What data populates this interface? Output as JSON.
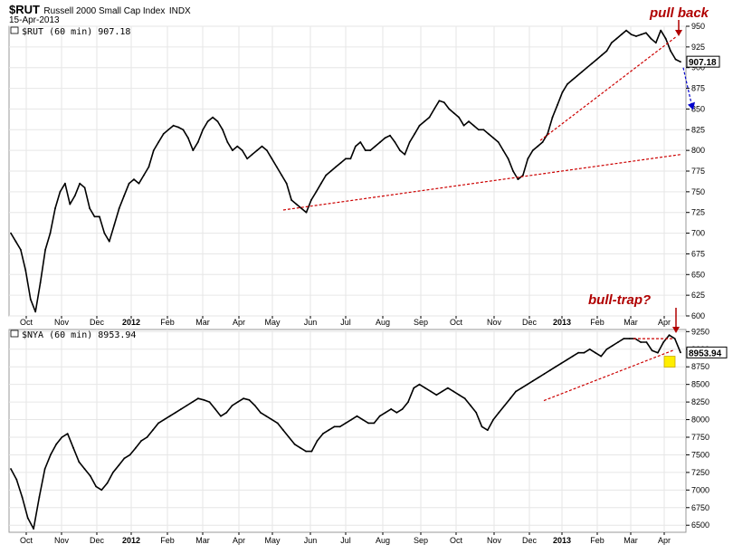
{
  "header": {
    "symbol": "$RUT",
    "name": "Russell 2000 Small Cap Index",
    "exchange": "INDX",
    "date": "15-Apr-2013"
  },
  "colors": {
    "price": "#000000",
    "trendline": "#cc0000",
    "annotation": "#b00000",
    "projection": "#0000cc",
    "highlight": "#ffee00",
    "grid": "#e6e6e6"
  },
  "chart_data": [
    {
      "type": "line",
      "legend": "$RUT (60 min) 907.18",
      "last_value": "907.18",
      "x_ticks": [
        {
          "label": "Oct",
          "bold": false
        },
        {
          "label": "Nov",
          "bold": false
        },
        {
          "label": "Dec",
          "bold": false
        },
        {
          "label": "2012",
          "bold": true
        },
        {
          "label": "Feb",
          "bold": false
        },
        {
          "label": "Mar",
          "bold": false
        },
        {
          "label": "Apr",
          "bold": false
        },
        {
          "label": "May",
          "bold": false
        },
        {
          "label": "Jun",
          "bold": false
        },
        {
          "label": "Jul",
          "bold": false
        },
        {
          "label": "Aug",
          "bold": false
        },
        {
          "label": "Sep",
          "bold": false
        },
        {
          "label": "Oct",
          "bold": false
        },
        {
          "label": "Nov",
          "bold": false
        },
        {
          "label": "Dec",
          "bold": false
        },
        {
          "label": "2013",
          "bold": true
        },
        {
          "label": "Feb",
          "bold": false
        },
        {
          "label": "Mar",
          "bold": false
        },
        {
          "label": "Apr",
          "bold": false
        }
      ],
      "y_ticks": [
        950,
        925,
        900,
        875,
        850,
        825,
        800,
        775,
        750,
        725,
        700,
        675,
        650,
        625,
        600
      ],
      "ylim": [
        600,
        950
      ],
      "series": [
        {
          "values": [
            700,
            690,
            680,
            655,
            620,
            605,
            640,
            680,
            700,
            730,
            750,
            760,
            735,
            745,
            760,
            755,
            730,
            720,
            720,
            700,
            690,
            710,
            730,
            745,
            760,
            765,
            760,
            770,
            780,
            800,
            810,
            820,
            825,
            830,
            828,
            825,
            815,
            800,
            810,
            825,
            835,
            840,
            835,
            825,
            810,
            800,
            805,
            800,
            790,
            795,
            800,
            805,
            800,
            790,
            780,
            770,
            760,
            740,
            735,
            730,
            725,
            740,
            750,
            760,
            770,
            775,
            780,
            785,
            790,
            790,
            805,
            810,
            800,
            800,
            805,
            810,
            815,
            818,
            810,
            800,
            795,
            810,
            820,
            830,
            835,
            840,
            850,
            860,
            858,
            850,
            845,
            840,
            830,
            835,
            830,
            825,
            825,
            820,
            815,
            810,
            800,
            790,
            775,
            765,
            770,
            790,
            800,
            805,
            810,
            820,
            840,
            855,
            870,
            880,
            885,
            890,
            895,
            900,
            905,
            910,
            915,
            920,
            930,
            935,
            940,
            945,
            940,
            938,
            940,
            942,
            935,
            930,
            945,
            935,
            920,
            910,
            907
          ]
        }
      ],
      "annotations": [
        {
          "label": "pull back"
        }
      ]
    },
    {
      "type": "line",
      "legend": "$NYA (60 min) 8953.94",
      "last_value": "8953.94",
      "x_ticks": [
        {
          "label": "Oct",
          "bold": false
        },
        {
          "label": "Nov",
          "bold": false
        },
        {
          "label": "Dec",
          "bold": false
        },
        {
          "label": "2012",
          "bold": true
        },
        {
          "label": "Feb",
          "bold": false
        },
        {
          "label": "Mar",
          "bold": false
        },
        {
          "label": "Apr",
          "bold": false
        },
        {
          "label": "May",
          "bold": false
        },
        {
          "label": "Jun",
          "bold": false
        },
        {
          "label": "Jul",
          "bold": false
        },
        {
          "label": "Aug",
          "bold": false
        },
        {
          "label": "Sep",
          "bold": false
        },
        {
          "label": "Oct",
          "bold": false
        },
        {
          "label": "Nov",
          "bold": false
        },
        {
          "label": "Dec",
          "bold": false
        },
        {
          "label": "2013",
          "bold": true
        },
        {
          "label": "Feb",
          "bold": false
        },
        {
          "label": "Mar",
          "bold": false
        },
        {
          "label": "Apr",
          "bold": false
        }
      ],
      "y_ticks": [
        9250,
        9000,
        8750,
        8500,
        8250,
        8000,
        7750,
        7500,
        7250,
        7000,
        6750,
        6500
      ],
      "ylim": [
        6400,
        9280
      ],
      "series": [
        {
          "values": [
            7300,
            7150,
            6900,
            6600,
            6450,
            6900,
            7300,
            7500,
            7650,
            7750,
            7800,
            7600,
            7400,
            7300,
            7200,
            7050,
            7000,
            7100,
            7250,
            7350,
            7450,
            7500,
            7600,
            7700,
            7750,
            7850,
            7950,
            8000,
            8050,
            8100,
            8150,
            8200,
            8250,
            8300,
            8280,
            8250,
            8150,
            8050,
            8100,
            8200,
            8250,
            8300,
            8280,
            8200,
            8100,
            8050,
            8000,
            7950,
            7850,
            7750,
            7650,
            7600,
            7550,
            7550,
            7700,
            7800,
            7850,
            7900,
            7900,
            7950,
            8000,
            8050,
            8000,
            7950,
            7950,
            8050,
            8100,
            8150,
            8100,
            8150,
            8250,
            8450,
            8500,
            8450,
            8400,
            8350,
            8400,
            8450,
            8400,
            8350,
            8300,
            8200,
            8100,
            7900,
            7850,
            8000,
            8100,
            8200,
            8300,
            8400,
            8450,
            8500,
            8550,
            8600,
            8650,
            8700,
            8750,
            8800,
            8850,
            8900,
            8950,
            8950,
            9000,
            8950,
            8900,
            9000,
            9050,
            9100,
            9150,
            9150,
            9150,
            9100,
            9100,
            8980,
            8950,
            9100,
            9200,
            9150,
            8954
          ]
        }
      ],
      "annotations": [
        {
          "label": "bull-trap?"
        }
      ]
    }
  ]
}
